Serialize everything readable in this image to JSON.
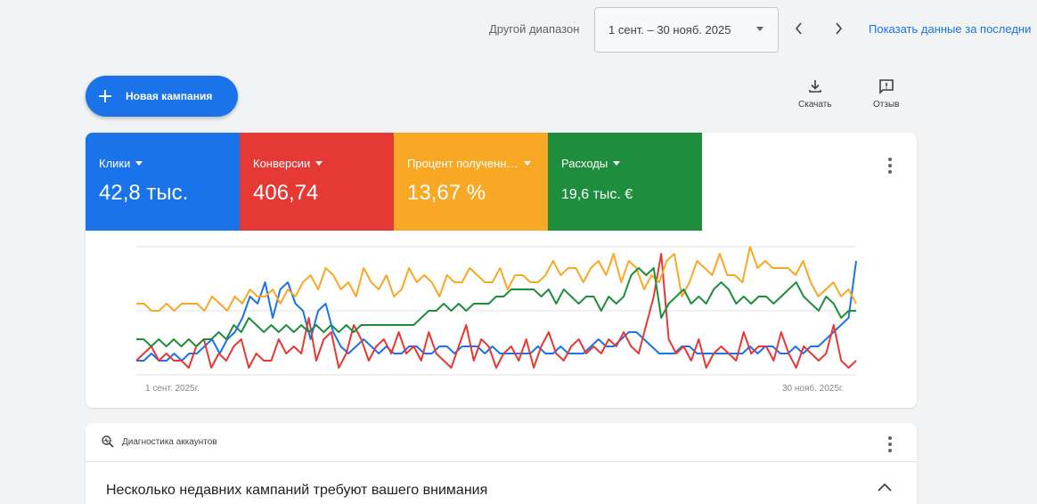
{
  "top_bar": {
    "range_label": "Другой диапазон",
    "range_value": "1 сент. – 30 нояб. 2025",
    "show_data_link": "Показать данные за последни"
  },
  "actions": {
    "new_campaign": "Новая кампания",
    "download": "Скачать",
    "feedback": "Отзыв"
  },
  "metrics": [
    {
      "name": "Клики",
      "value": "42,8 тыс.",
      "color": "#1a73e8"
    },
    {
      "name": "Конверсии",
      "value": "406,74",
      "color": "#e53935"
    },
    {
      "name": "Процент полученн…",
      "value": "13,67 %",
      "color": "#f9a825"
    },
    {
      "name": "Расходы",
      "value": "19,6 тыс. €",
      "color": "#1e8e3e"
    }
  ],
  "chart_data": {
    "type": "line",
    "x_start_label": "1 сент. 2025г.",
    "x_end_label": "30 нояб. 2025г.",
    "grid": true,
    "series": [
      {
        "name": "Клики",
        "color": "#1a73e8",
        "values": [
          2,
          2,
          3,
          2,
          2,
          3,
          2,
          3,
          3,
          4,
          5,
          3,
          5,
          6,
          8,
          11,
          10,
          13,
          8,
          12,
          13,
          10,
          9,
          5,
          9,
          10,
          6,
          4,
          3,
          4,
          5,
          4,
          3,
          4,
          3,
          3,
          4,
          4,
          3,
          3,
          4,
          4,
          3,
          4,
          4,
          4,
          3,
          4,
          3,
          3,
          3,
          3,
          3,
          4,
          3,
          3,
          4,
          3,
          3,
          3,
          4,
          5,
          4,
          4,
          5,
          6,
          6,
          5,
          4,
          3,
          3,
          3,
          4,
          4,
          3,
          3,
          3,
          3,
          3,
          3,
          3,
          4,
          3,
          4,
          4,
          3,
          3,
          4,
          3,
          4,
          4,
          5,
          6,
          7,
          8,
          16
        ]
      },
      {
        "name": "Конверсии",
        "color": "#e53935",
        "values": [
          2,
          3,
          4,
          2,
          3,
          2,
          2,
          1,
          4,
          5,
          1,
          3,
          2,
          4,
          5,
          1,
          3,
          2,
          2,
          5,
          3,
          4,
          3,
          8,
          2,
          5,
          6,
          1,
          3,
          7,
          5,
          2,
          4,
          5,
          3,
          6,
          3,
          4,
          2,
          6,
          3,
          2,
          1,
          4,
          7,
          2,
          5,
          4,
          1,
          3,
          4,
          2,
          5,
          1,
          4,
          6,
          3,
          2,
          4,
          5,
          3,
          4,
          3,
          5,
          4,
          6,
          4,
          3,
          7,
          11,
          17,
          5,
          3,
          4,
          2,
          5,
          1,
          3,
          4,
          3,
          2,
          6,
          3,
          4,
          4,
          2,
          6,
          3,
          1,
          4,
          3,
          2,
          3,
          7,
          2,
          1,
          2
        ]
      },
      {
        "name": "Процент полученн…",
        "color": "#f9a825",
        "values": [
          10,
          10,
          9,
          9,
          10,
          9,
          10,
          10,
          10,
          9,
          11,
          10,
          9,
          11,
          10,
          12,
          11,
          11,
          12,
          10,
          12,
          11,
          13,
          14,
          12,
          15,
          14,
          12,
          13,
          11,
          15,
          13,
          12,
          14,
          11,
          12,
          15,
          13,
          14,
          13,
          11,
          14,
          13,
          13,
          15,
          14,
          13,
          13,
          15,
          12,
          14,
          14,
          13,
          13,
          14,
          16,
          14,
          15,
          15,
          13,
          15,
          16,
          14,
          17,
          13,
          16,
          15,
          12,
          14,
          13,
          16,
          17,
          11,
          13,
          16,
          15,
          14,
          17,
          14,
          14,
          13,
          18,
          15,
          16,
          15,
          15,
          15,
          14,
          16,
          13,
          11,
          12,
          13,
          11,
          12,
          10
        ]
      },
      {
        "name": "Расходы",
        "color": "#1e8e3e",
        "values": [
          5,
          5,
          4,
          5,
          4,
          5,
          4,
          5,
          4,
          5,
          5,
          6,
          5,
          7,
          6,
          8,
          7,
          6,
          7,
          6,
          7,
          6,
          7,
          6,
          7,
          6,
          7,
          6,
          7,
          6,
          7,
          7,
          7,
          7,
          7,
          7,
          7,
          7,
          8,
          9,
          9,
          10,
          9,
          10,
          9,
          10,
          10,
          10,
          11,
          11,
          12,
          12,
          12,
          12,
          11,
          12,
          10,
          12,
          11,
          10,
          11,
          11,
          9,
          11,
          10,
          11,
          14,
          15,
          14,
          15,
          8,
          10,
          11,
          12,
          10,
          11,
          10,
          12,
          13,
          12,
          10,
          11,
          10,
          11,
          11,
          10,
          11,
          12,
          13,
          11,
          10,
          9,
          11,
          10,
          8,
          9,
          9
        ]
      }
    ]
  },
  "diagnostics": {
    "title": "Диагностика аккаунтов",
    "message": "Несколько недавних кампаний требуют вашего внимания"
  }
}
